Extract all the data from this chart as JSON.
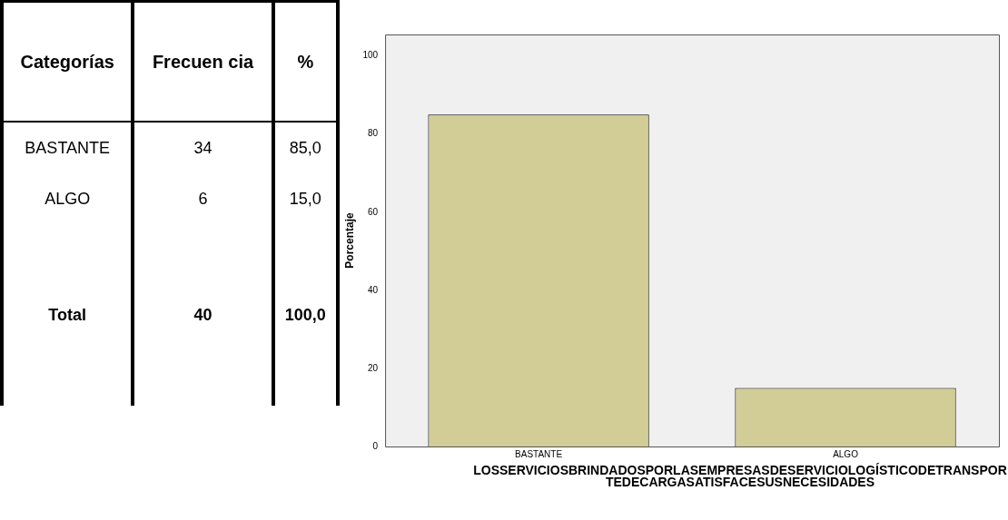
{
  "chart_data": [
    {
      "type": "other",
      "annotations": [
        "Categorías",
        "Frecuen cia",
        "%",
        "BASTANTE",
        "34",
        "85,0",
        "ALGO",
        "6",
        "15,0",
        "Total",
        "40",
        "100,0"
      ]
    },
    {
      "type": "bar",
      "ylabel": "Porcentaje",
      "xlabel": "LOSSERVICIOSBRINDADOSPORLASEMPRESASDESERVICIOLOGÍSTICODETRANSPORTEDECARGASATISFACESUSNECESIDADES",
      "categories": [
        "BASTANTE",
        "ALGO"
      ],
      "values": [
        85,
        15
      ],
      "color": "#d2cd96",
      "ylim": [
        0,
        105.5
      ],
      "yticks": [
        0,
        20,
        40,
        60,
        80,
        100
      ],
      "grid": false,
      "legend": false
    }
  ]
}
